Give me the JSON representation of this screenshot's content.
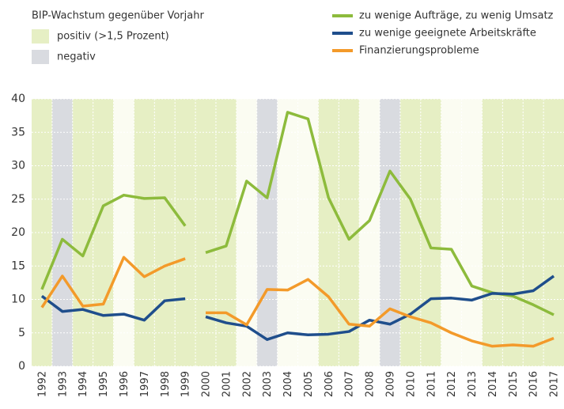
{
  "chart_data": {
    "type": "line",
    "bip_legend": {
      "title": "BIP-Wachstum gegenüber Vorjahr",
      "entries": [
        {
          "name": "positiv (>1,5 Prozent)",
          "color": "#e6efc4"
        },
        {
          "name": "negativ",
          "color": "#d9dbe0"
        }
      ]
    },
    "categories": [
      "1992",
      "1993",
      "1994",
      "1995",
      "1996",
      "1997",
      "1998",
      "1999",
      "2000",
      "2001",
      "2002",
      "2003",
      "2004",
      "2005",
      "2006",
      "2007",
      "2008",
      "2009",
      "2010",
      "2011",
      "2012",
      "2013",
      "2014",
      "2015",
      "2016",
      "2017"
    ],
    "bands": [
      "positiv (>1,5 Prozent)",
      "negativ",
      "positiv (>1,5 Prozent)",
      "positiv (>1,5 Prozent)",
      null,
      "positiv (>1,5 Prozent)",
      "positiv (>1,5 Prozent)",
      "positiv (>1,5 Prozent)",
      "positiv (>1,5 Prozent)",
      "positiv (>1,5 Prozent)",
      null,
      "negativ",
      null,
      null,
      "positiv (>1,5 Prozent)",
      "positiv (>1,5 Prozent)",
      null,
      "negativ",
      "positiv (>1,5 Prozent)",
      "positiv (>1,5 Prozent)",
      null,
      null,
      "positiv (>1,5 Prozent)",
      "positiv (>1,5 Prozent)",
      "positiv (>1,5 Prozent)",
      "positiv (>1,5 Prozent)"
    ],
    "break_after": "1999",
    "series": [
      {
        "name": "zu wenige Aufträge, zu wenig Umsatz",
        "color": "#8dbb3c",
        "values": [
          11.5,
          19,
          16.5,
          24,
          25.6,
          25.1,
          25.2,
          21,
          17,
          18,
          27.7,
          25.2,
          38,
          37,
          25.2,
          19,
          21.8,
          29.2,
          25,
          17.7,
          17.5,
          12,
          11,
          10.5,
          9.2,
          7.7
        ]
      },
      {
        "name": "zu wenige geeignete Arbeitskräfte",
        "color": "#1f4e8c",
        "values": [
          10.5,
          8.2,
          8.5,
          7.6,
          7.8,
          6.9,
          9.8,
          10.1,
          7.4,
          6.5,
          6,
          4,
          5,
          4.7,
          4.8,
          5.2,
          6.9,
          6.3,
          7.8,
          10.1,
          10.2,
          9.9,
          10.9,
          10.8,
          11.3,
          13.5
        ]
      },
      {
        "name": "Finanzierungsprobleme",
        "color": "#f39a2a",
        "values": [
          8.8,
          13.5,
          9,
          9.3,
          16.3,
          13.4,
          15,
          16.1,
          8,
          8,
          6.2,
          11.5,
          11.4,
          13,
          10.4,
          6.3,
          6,
          8.6,
          7.4,
          6.5,
          5,
          3.8,
          3,
          3.2,
          3,
          4.2
        ]
      }
    ],
    "ylim": [
      0,
      40
    ],
    "yticks": [
      0,
      5,
      10,
      15,
      20,
      25,
      30,
      35,
      40
    ],
    "grid": true
  }
}
